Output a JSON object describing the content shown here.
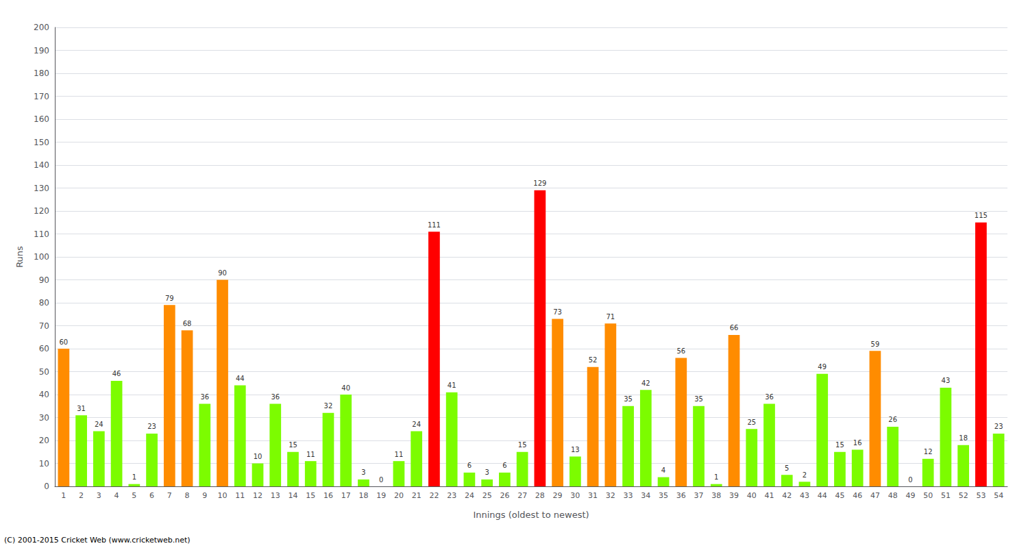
{
  "chart_data": {
    "type": "bar",
    "xlabel": "Innings (oldest to newest)",
    "ylabel": "Runs",
    "annotations": [
      "(C) 2001-2015 Cricket Web (www.cricketweb.net)"
    ],
    "categories": [
      "1",
      "2",
      "3",
      "4",
      "5",
      "6",
      "7",
      "8",
      "9",
      "10",
      "11",
      "12",
      "13",
      "14",
      "15",
      "16",
      "17",
      "18",
      "19",
      "20",
      "21",
      "22",
      "23",
      "24",
      "25",
      "26",
      "27",
      "28",
      "29",
      "30",
      "31",
      "32",
      "33",
      "34",
      "35",
      "36",
      "37",
      "38",
      "39",
      "40",
      "41",
      "42",
      "43",
      "44",
      "45",
      "46",
      "47",
      "48",
      "49",
      "50",
      "51",
      "52",
      "53",
      "54"
    ],
    "values": [
      60,
      31,
      24,
      46,
      1,
      23,
      79,
      68,
      36,
      90,
      44,
      10,
      36,
      15,
      11,
      32,
      40,
      3,
      0,
      11,
      24,
      111,
      41,
      6,
      3,
      6,
      15,
      129,
      73,
      13,
      52,
      71,
      35,
      42,
      4,
      56,
      35,
      1,
      66,
      25,
      36,
      5,
      2,
      49,
      15,
      16,
      59,
      26,
      0,
      12,
      43,
      18,
      115,
      23
    ],
    "colors": [
      "#FF8C00",
      "#7CFC00",
      "#7CFC00",
      "#7CFC00",
      "#7CFC00",
      "#7CFC00",
      "#FF8C00",
      "#FF8C00",
      "#7CFC00",
      "#FF8C00",
      "#7CFC00",
      "#7CFC00",
      "#7CFC00",
      "#7CFC00",
      "#7CFC00",
      "#7CFC00",
      "#7CFC00",
      "#7CFC00",
      "#7CFC00",
      "#7CFC00",
      "#7CFC00",
      "#FF0000",
      "#7CFC00",
      "#7CFC00",
      "#7CFC00",
      "#7CFC00",
      "#7CFC00",
      "#FF0000",
      "#FF8C00",
      "#7CFC00",
      "#FF8C00",
      "#FF8C00",
      "#7CFC00",
      "#7CFC00",
      "#7CFC00",
      "#FF8C00",
      "#7CFC00",
      "#7CFC00",
      "#FF8C00",
      "#7CFC00",
      "#7CFC00",
      "#7CFC00",
      "#7CFC00",
      "#7CFC00",
      "#7CFC00",
      "#7CFC00",
      "#FF8C00",
      "#7CFC00",
      "#7CFC00",
      "#7CFC00",
      "#7CFC00",
      "#7CFC00",
      "#FF0000",
      "#7CFC00"
    ],
    "ylim": [
      0,
      200
    ],
    "yticks": [
      0,
      10,
      20,
      30,
      40,
      50,
      60,
      70,
      80,
      90,
      100,
      110,
      120,
      130,
      140,
      150,
      160,
      170,
      180,
      190,
      200
    ],
    "grid": true,
    "data_labels": true
  }
}
